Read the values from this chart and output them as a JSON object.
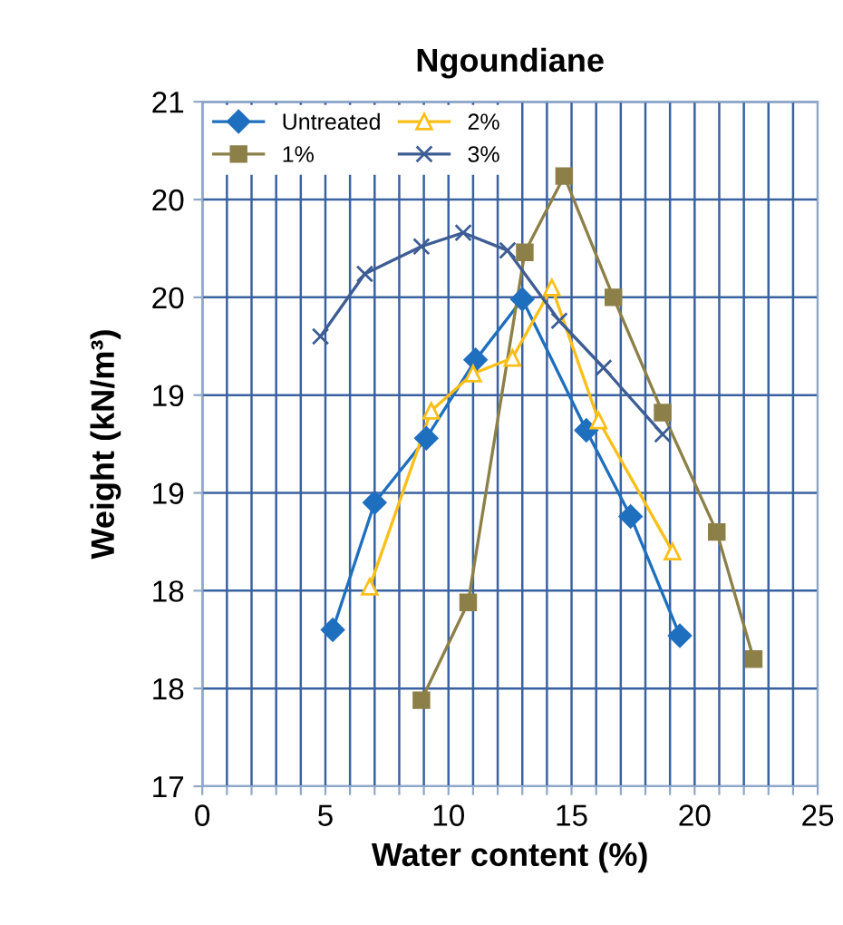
{
  "chart_data": {
    "type": "line",
    "title": "Ngoundiane",
    "xlabel": "Water content (%)",
    "ylabel": "Weight (kN/m³)",
    "xlim": [
      0,
      25
    ],
    "xticks": [
      0,
      {
        "value": 1,
        "label": null
      },
      {
        "value": 2,
        "label": null
      },
      {
        "value": 3,
        "label": null
      },
      {
        "value": 4,
        "label": null
      },
      5,
      {
        "value": 6,
        "label": null
      },
      {
        "value": 7,
        "label": null
      },
      {
        "value": 8,
        "label": null
      },
      {
        "value": 9,
        "label": null
      },
      10,
      {
        "value": 11,
        "label": null
      },
      {
        "value": 12,
        "label": null
      },
      {
        "value": 13,
        "label": null
      },
      {
        "value": 14,
        "label": null
      },
      15,
      {
        "value": 16,
        "label": null
      },
      {
        "value": 17,
        "label": null
      },
      {
        "value": 18,
        "label": null
      },
      {
        "value": 19,
        "label": null
      },
      20,
      {
        "value": 21,
        "label": null
      },
      {
        "value": 22,
        "label": null
      },
      {
        "value": 23,
        "label": null
      },
      {
        "value": 24,
        "label": null
      },
      25
    ],
    "ylim": [
      17,
      20.5
    ],
    "yticks": [
      17,
      {
        "value": 17.5,
        "label": "18"
      },
      18,
      {
        "value": 18.5,
        "label": "19"
      },
      19,
      {
        "value": 19.5,
        "label": "20"
      },
      20,
      {
        "value": 20.5,
        "label": "21"
      }
    ],
    "grid": true,
    "legend": "top left",
    "series": [
      {
        "name": "Untreated",
        "color": "#1f6fbf",
        "marker": "diamond",
        "x": [
          5.3,
          7.0,
          9.1,
          11.1,
          13.0,
          15.6,
          17.4,
          19.4
        ],
        "values": [
          17.8,
          18.45,
          18.78,
          19.18,
          19.49,
          18.82,
          18.38,
          17.77
        ]
      },
      {
        "name": "1%",
        "color": "#8c8048",
        "marker": "square",
        "x": [
          8.9,
          10.8,
          13.1,
          14.7,
          16.7,
          18.7,
          20.9,
          22.4
        ],
        "values": [
          17.44,
          17.94,
          19.73,
          20.12,
          19.5,
          18.91,
          18.3,
          17.65
        ]
      },
      {
        "name": "2%",
        "color": "#fbbf1a",
        "marker": "triangle",
        "x": [
          6.8,
          9.3,
          11.0,
          12.6,
          14.2,
          16.1,
          19.1
        ],
        "values": [
          18.02,
          18.92,
          19.11,
          19.19,
          19.55,
          18.87,
          18.2
        ]
      },
      {
        "name": "3%",
        "color": "#3d5d94",
        "marker": "cross",
        "x": [
          4.8,
          6.6,
          8.9,
          10.6,
          12.4,
          14.5,
          16.3,
          18.7
        ],
        "values": [
          19.3,
          19.62,
          19.76,
          19.83,
          19.74,
          19.38,
          19.14,
          18.8
        ]
      }
    ]
  }
}
